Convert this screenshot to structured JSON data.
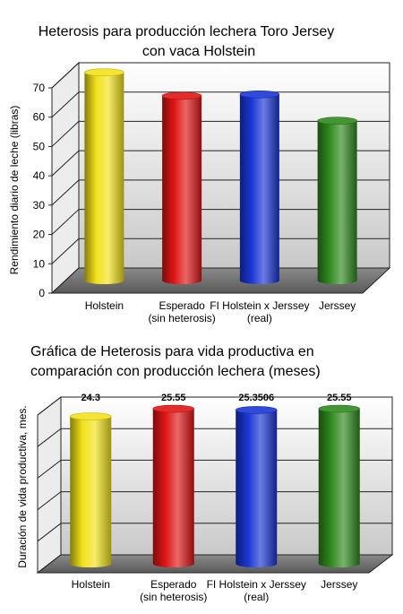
{
  "chart_data": [
    {
      "type": "bar",
      "title_lines": [
        "Heterosis para producción lechera Toro Jersey",
        "con vaca Holstein"
      ],
      "ylabel": "Rendimiento diario de leche (libras)",
      "y_ticks": [
        "0",
        "10",
        "20",
        "30",
        "40",
        "50",
        "60",
        "70"
      ],
      "ylim": [
        0,
        70
      ],
      "grid": true,
      "categories": [
        [
          "Holstein"
        ],
        [
          "Esperado",
          "(sin heterosis)"
        ],
        [
          "FI Holstein x Jerssey",
          "(real)"
        ],
        [
          "Jerssey"
        ]
      ],
      "values": [
        71,
        63,
        63.5,
        54.5
      ],
      "data_labels": [],
      "colors": [
        "#f2e21a",
        "#e01515",
        "#1a36d6",
        "#2f8a1e"
      ]
    },
    {
      "type": "bar",
      "title_lines": [
        "Gráfica de Heterosis para vida productiva en",
        "comparación con producción lechera (meses)"
      ],
      "ylabel": "Duración de vida productiva, mes.",
      "y_ticks": [],
      "ylim": [
        0,
        26
      ],
      "grid": true,
      "categories": [
        [
          "Holstein"
        ],
        [
          "Esperado",
          "(sin heterosis)"
        ],
        [
          "FI Holstein x Jerssey",
          "(real)"
        ],
        [
          "Jerssey"
        ]
      ],
      "values": [
        24.3,
        25.55,
        25.3506,
        25.55
      ],
      "data_labels": [
        "24.3",
        "25.55",
        "25.3506",
        "25.55"
      ],
      "colors": [
        "#f2e21a",
        "#e01515",
        "#1a36d6",
        "#2f8a1e"
      ]
    }
  ]
}
